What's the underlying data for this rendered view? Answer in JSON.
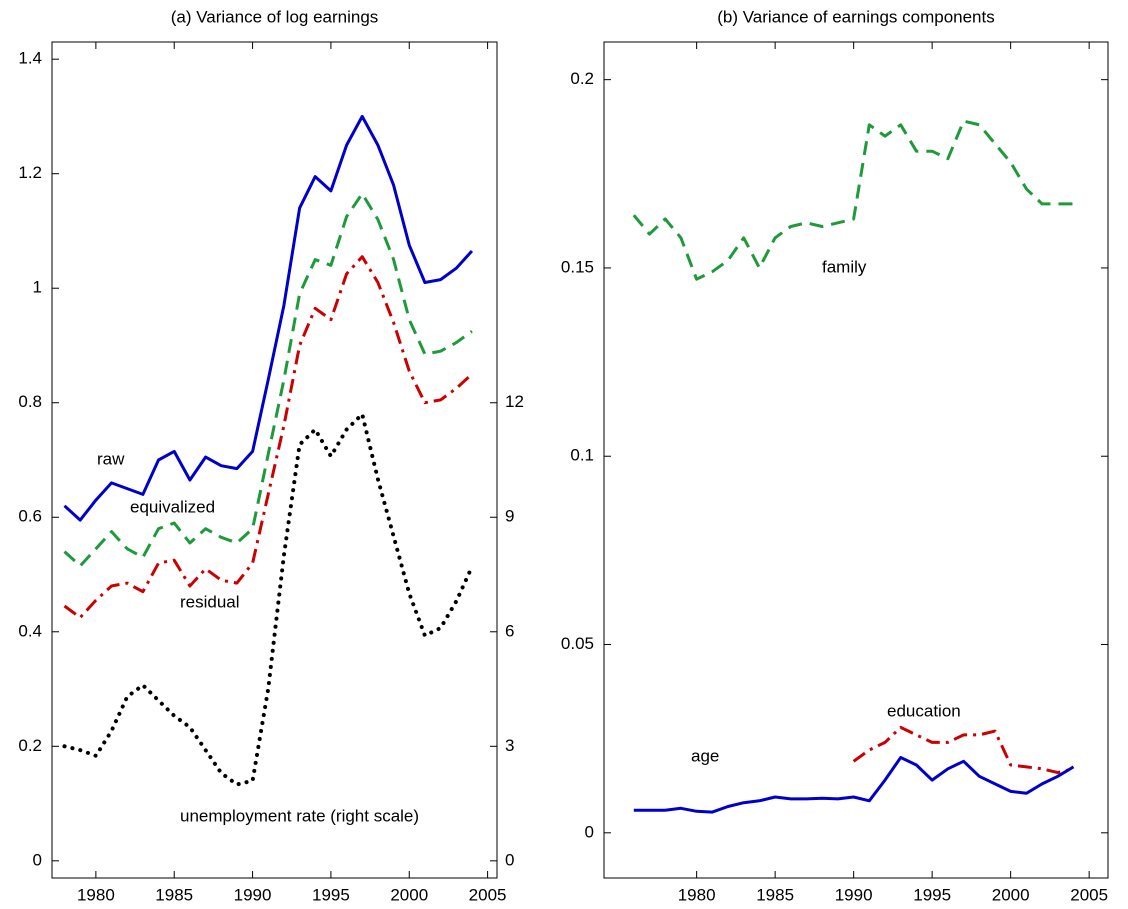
{
  "chart_data": [
    {
      "type": "line",
      "title": "(a) Variance of log earnings",
      "x": [
        1978,
        1979,
        1980,
        1981,
        1982,
        1983,
        1984,
        1985,
        1986,
        1987,
        1988,
        1989,
        1990,
        1991,
        1992,
        1993,
        1994,
        1995,
        1996,
        1997,
        1998,
        1999,
        2000,
        2001,
        2002,
        2003,
        2004
      ],
      "xlim": [
        1977.2,
        2005.6
      ],
      "xticks": [
        1980,
        1985,
        1990,
        1995,
        2000,
        2005
      ],
      "ylim": [
        -0.03,
        1.43
      ],
      "yticks": [
        0,
        0.2,
        0.4,
        0.6,
        0.8,
        1,
        1.2,
        1.4
      ],
      "y2lim": [
        -0.45,
        21.45
      ],
      "y2ticks": [
        0,
        3,
        6,
        9,
        12
      ],
      "series": [
        {
          "name": "raw",
          "color": "#0000cc",
          "linestyle": "solid",
          "values": [
            0.62,
            0.595,
            0.63,
            0.66,
            0.65,
            0.64,
            0.7,
            0.715,
            0.665,
            0.705,
            0.69,
            0.685,
            0.715,
            0.84,
            0.97,
            1.14,
            1.195,
            1.17,
            1.25,
            1.3,
            1.25,
            1.18,
            1.075,
            1.01,
            1.015,
            1.035,
            1.065
          ]
        },
        {
          "name": "equivalized",
          "color": "#1f9a3a",
          "linestyle": "dashed",
          "values": [
            0.54,
            0.515,
            0.545,
            0.575,
            0.545,
            0.53,
            0.58,
            0.59,
            0.555,
            0.58,
            0.565,
            0.555,
            0.58,
            0.71,
            0.84,
            0.99,
            1.05,
            1.04,
            1.125,
            1.165,
            1.12,
            1.05,
            0.945,
            0.885,
            0.89,
            0.905,
            0.925
          ]
        },
        {
          "name": "residual",
          "color": "#cc0000",
          "linestyle": "dashdot",
          "values": [
            0.445,
            0.425,
            0.455,
            0.48,
            0.485,
            0.47,
            0.52,
            0.525,
            0.48,
            0.51,
            0.49,
            0.485,
            0.52,
            0.64,
            0.76,
            0.9,
            0.965,
            0.945,
            1.025,
            1.055,
            1.01,
            0.94,
            0.855,
            0.8,
            0.805,
            0.825,
            0.85
          ]
        },
        {
          "name": "unemployment rate (right scale)",
          "color": "#000000",
          "linestyle": "dotted",
          "axis": "y2",
          "values": [
            3.0,
            2.9,
            2.75,
            3.4,
            4.3,
            4.6,
            4.2,
            3.8,
            3.5,
            2.9,
            2.3,
            2.0,
            2.1,
            4.5,
            8.0,
            10.9,
            11.3,
            10.6,
            11.3,
            11.7,
            10.0,
            8.5,
            7.0,
            5.9,
            6.1,
            6.8,
            7.7
          ]
        }
      ]
    },
    {
      "type": "line",
      "title": "(b) Variance of earnings components",
      "x": [
        1976,
        1977,
        1978,
        1979,
        1980,
        1981,
        1982,
        1983,
        1984,
        1985,
        1986,
        1987,
        1988,
        1989,
        1990,
        1991,
        1992,
        1993,
        1994,
        1995,
        1996,
        1997,
        1998,
        1999,
        2000,
        2001,
        2002,
        2003,
        2004
      ],
      "xlim": [
        1974.1,
        2006.2
      ],
      "xticks": [
        1980,
        1985,
        1990,
        1995,
        2000,
        2005
      ],
      "ylim": [
        -0.012,
        0.21
      ],
      "yticks": [
        0,
        0.05,
        0.1,
        0.15,
        0.2
      ],
      "series": [
        {
          "name": "family",
          "color": "#1f9a3a",
          "linestyle": "dashed",
          "values": [
            0.164,
            0.159,
            0.163,
            0.158,
            0.147,
            0.149,
            0.152,
            0.158,
            0.15,
            0.158,
            0.161,
            0.162,
            0.161,
            0.162,
            0.163,
            0.188,
            0.185,
            0.188,
            0.181,
            0.181,
            0.179,
            0.189,
            0.188,
            0.183,
            0.178,
            0.171,
            0.167,
            0.167,
            0.167
          ]
        },
        {
          "name": "education",
          "color": "#cc0000",
          "linestyle": "dashdot",
          "values": [
            null,
            null,
            null,
            null,
            null,
            null,
            null,
            null,
            null,
            null,
            null,
            null,
            null,
            null,
            0.019,
            0.022,
            0.024,
            0.028,
            0.026,
            0.024,
            0.024,
            0.026,
            0.026,
            0.027,
            0.018,
            0.0175,
            0.017,
            0.016,
            0.017
          ]
        },
        {
          "name": "age",
          "color": "#0000cc",
          "linestyle": "solid",
          "values": [
            0.006,
            0.006,
            0.006,
            0.0065,
            0.0057,
            0.0055,
            0.007,
            0.008,
            0.0085,
            0.0095,
            0.009,
            0.009,
            0.0092,
            0.009,
            0.0095,
            0.0085,
            0.014,
            0.02,
            0.018,
            0.014,
            0.017,
            0.019,
            0.015,
            0.013,
            0.011,
            0.0105,
            0.013,
            0.015,
            0.0175
          ]
        }
      ]
    }
  ]
}
